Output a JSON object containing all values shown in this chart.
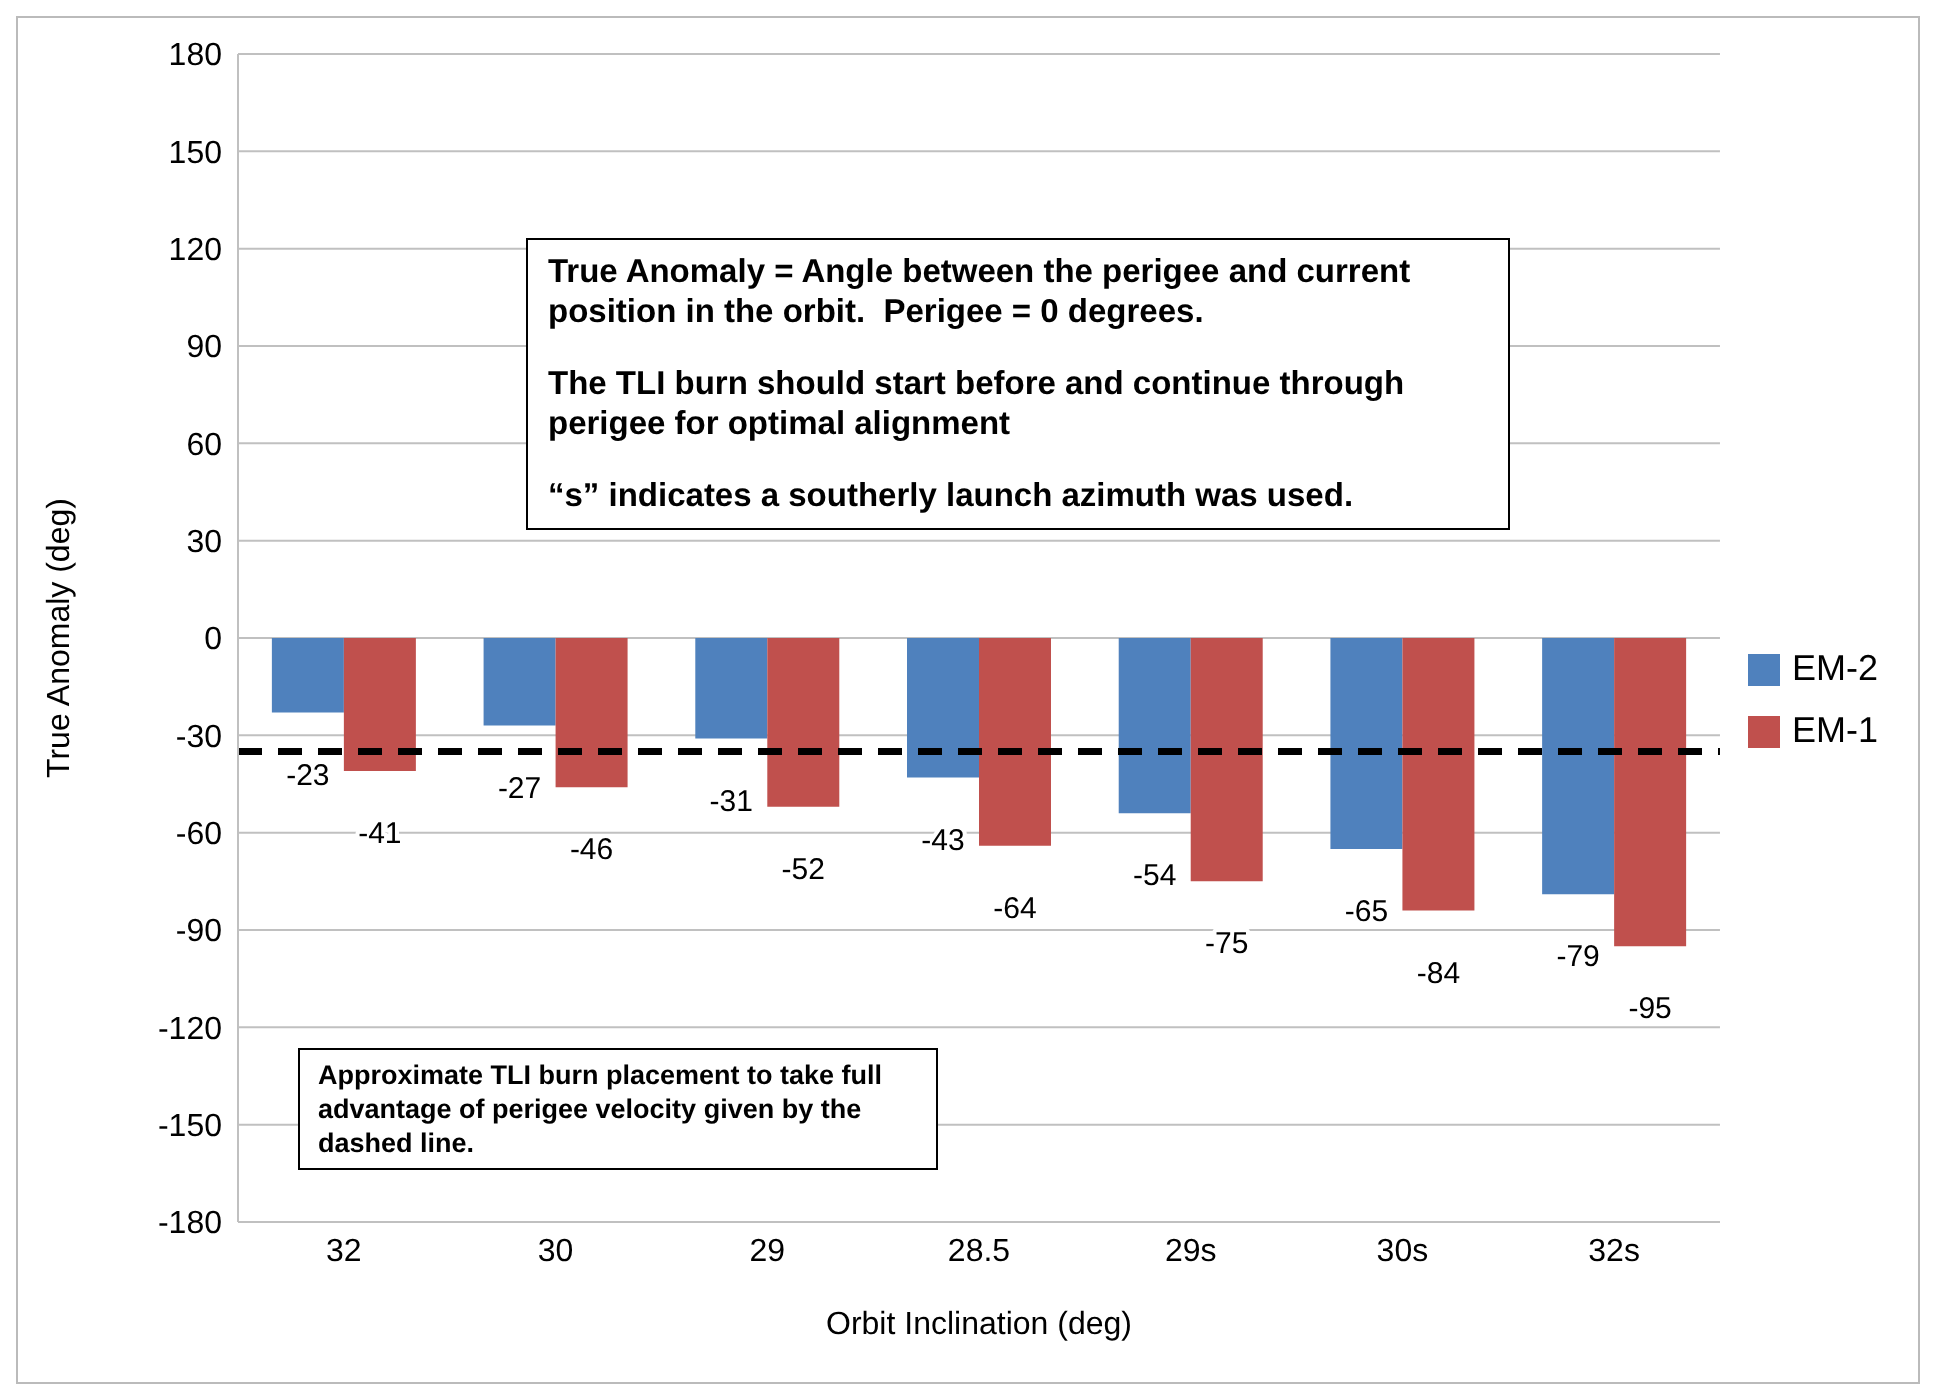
{
  "chart_data": {
    "type": "bar",
    "xlabel": "Orbit Inclination (deg)",
    "ylabel": "True Anomaly (deg)",
    "categories": [
      "32",
      "30",
      "29",
      "28.5",
      "29s",
      "30s",
      "32s"
    ],
    "series": [
      {
        "name": "EM-2",
        "color": "#4f81bd",
        "values": [
          -23,
          -27,
          -31,
          -43,
          -54,
          -65,
          -79
        ]
      },
      {
        "name": "EM-1",
        "color": "#c0504d",
        "values": [
          -41,
          -46,
          -52,
          -64,
          -75,
          -84,
          -95
        ]
      }
    ],
    "ylim": [
      -180,
      180
    ],
    "yticks": [
      -180,
      -150,
      -120,
      -90,
      -60,
      -30,
      0,
      30,
      60,
      90,
      120,
      150,
      180
    ],
    "grid": "y",
    "legend": "right",
    "data_labels": true,
    "ref_lines": [
      {
        "axis": "y",
        "value": -35,
        "color": "#000000",
        "line_style": "dashed"
      }
    ],
    "annotations": [
      "True Anomaly = Angle between the perigee and current position in the orbit.  Perigee = 0 degrees.",
      "The TLI burn should start before and continue through perigee for optimal alignment",
      "“s” indicates a southerly launch azimuth was used.",
      "Approximate TLI burn placement to take full advantage of perigee velocity given by the dashed line."
    ]
  }
}
